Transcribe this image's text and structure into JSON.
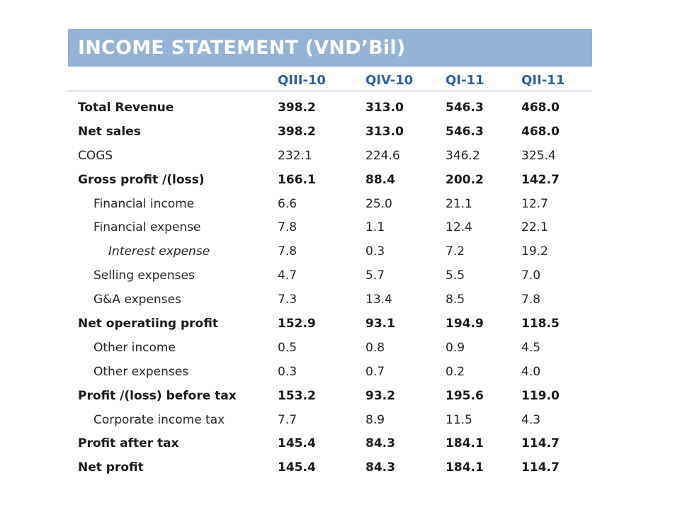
{
  "title": "INCOME STATEMENT (VND’Bil)",
  "columns": [
    "QIII-10",
    "QIV-10",
    "QI-11",
    "QII-11"
  ],
  "rows": [
    {
      "label": "Total Revenue",
      "values": [
        "398.2",
        "313.0",
        "546.3",
        "468.0"
      ]
    },
    {
      "label": "Net sales",
      "values": [
        "398.2",
        "313.0",
        "546.3",
        "468.0"
      ]
    },
    {
      "label": "COGS",
      "values": [
        "232.1",
        "224.6",
        "346.2",
        "325.4"
      ]
    },
    {
      "label": "Gross profit /(loss)",
      "values": [
        "166.1",
        "88.4",
        "200.2",
        "142.7"
      ]
    },
    {
      "label": "Financial income",
      "values": [
        "6.6",
        "25.0",
        "21.1",
        "12.7"
      ]
    },
    {
      "label": "Financial expense",
      "values": [
        "7.8",
        "1.1",
        "12.4",
        "22.1"
      ]
    },
    {
      "label": "Interest expense",
      "values": [
        "7.8",
        "0.3",
        "7.2",
        "19.2"
      ]
    },
    {
      "label": "Selling expenses",
      "values": [
        "4.7",
        "5.7",
        "5.5",
        "7.0"
      ]
    },
    {
      "label": "G&A expenses",
      "values": [
        "7.3",
        "13.4",
        "8.5",
        "7.8"
      ]
    },
    {
      "label": "Net operatiing profit",
      "values": [
        "152.9",
        "93.1",
        "194.9",
        "118.5"
      ]
    },
    {
      "label": "Other income",
      "values": [
        "0.5",
        "0.8",
        "0.9",
        "4.5"
      ]
    },
    {
      "label": "Other expenses",
      "values": [
        "0.3",
        "0.7",
        "0.2",
        "4.0"
      ]
    },
    {
      "label": "Profit /(loss) before tax",
      "values": [
        "153.2",
        "93.2",
        "195.6",
        "119.0"
      ]
    },
    {
      "label": "Corporate income tax",
      "values": [
        "7.7",
        "8.9",
        "11.5",
        "4.3"
      ]
    },
    {
      "label": "Profit after tax",
      "values": [
        "145.4",
        "84.3",
        "184.1",
        "114.7"
      ]
    },
    {
      "label": "Net profit",
      "values": [
        "145.4",
        "84.3",
        "184.1",
        "114.7"
      ]
    }
  ]
}
